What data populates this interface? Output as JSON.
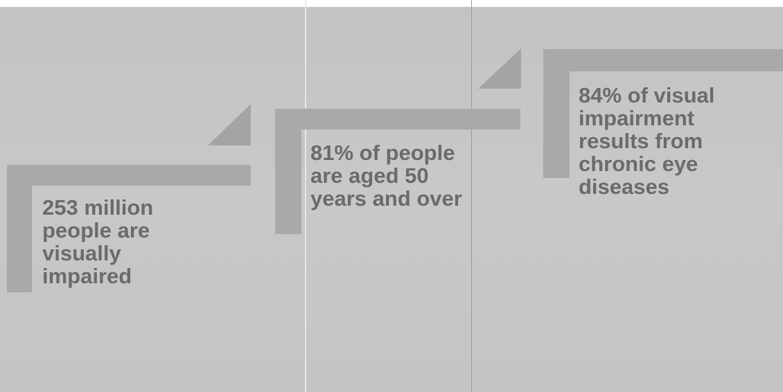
{
  "diagram": {
    "steps": [
      {
        "text": "253 million\npeople are\nvisually\nimpaired"
      },
      {
        "text": "81% of people\nare aged 50\nyears and over"
      },
      {
        "text": "84% of visual\nimpairment\nresults from\nchronic eye\ndiseases"
      }
    ],
    "colors": {
      "background": "#c6c6c6",
      "bar": "#a9a9a9",
      "triangle": "#a4a4a4",
      "text": "#6b6b6b"
    }
  }
}
